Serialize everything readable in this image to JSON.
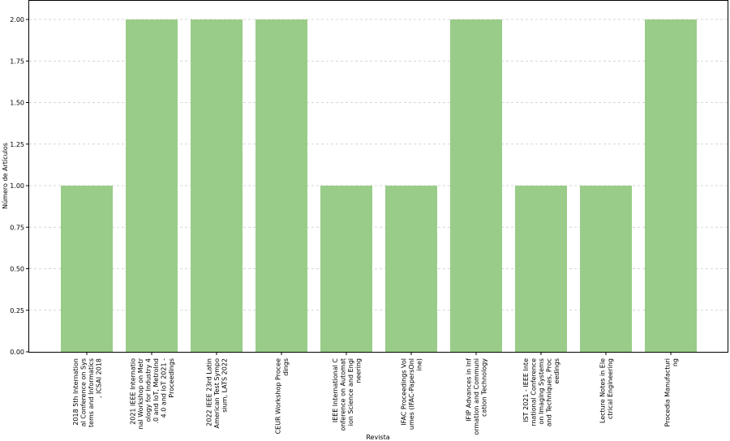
{
  "chart_data": {
    "type": "bar",
    "title": "",
    "xlabel": "Revista",
    "ylabel": "Número de Artículos",
    "ylim": [
      0,
      2.0
    ],
    "yticks": [
      "0.00",
      "0.25",
      "0.50",
      "0.75",
      "1.00",
      "1.25",
      "1.50",
      "1.75",
      "2.00"
    ],
    "grid": "y-dashed",
    "bar_color": "#99cc88",
    "categories": [
      [
        "2018 5th Internation",
        "al Conference on Sys",
        "tems and Informatics",
        ", ICSAI 2018"
      ],
      [
        "2021 IEEE Internatio",
        "nal Workshop on Metr",
        "ology for Industry 4",
        ".0 and IoT, MetroInd",
        "4.0 and IoT 2021 -",
        "Proceedings"
      ],
      [
        "2022 IEEE 23rd Latin",
        "American Test Sympo",
        "sium, LATS 2022"
      ],
      [
        "CEUR Workshop Procee",
        "dings"
      ],
      [
        "IEEE International C",
        "onference on Automat",
        "ion Science and Engi",
        "neering"
      ],
      [
        "IFAC Proceedings Vol",
        "umes (IFAC-PapersOnl",
        "ine)"
      ],
      [
        "IFIP Advances in Inf",
        "ormation and Communi",
        "cation Technology"
      ],
      [
        "IST 2021 - IEEE Inte",
        "rnational Conference",
        "on Imaging Systems",
        "and Techniques, Proc",
        "eedings"
      ],
      [
        "Lecture Notes in Ele",
        "ctrical Engineering"
      ],
      [
        "Procedia Manufacturi",
        "ng"
      ]
    ],
    "values": [
      1,
      2,
      2,
      2,
      1,
      1,
      2,
      1,
      1,
      2
    ]
  }
}
